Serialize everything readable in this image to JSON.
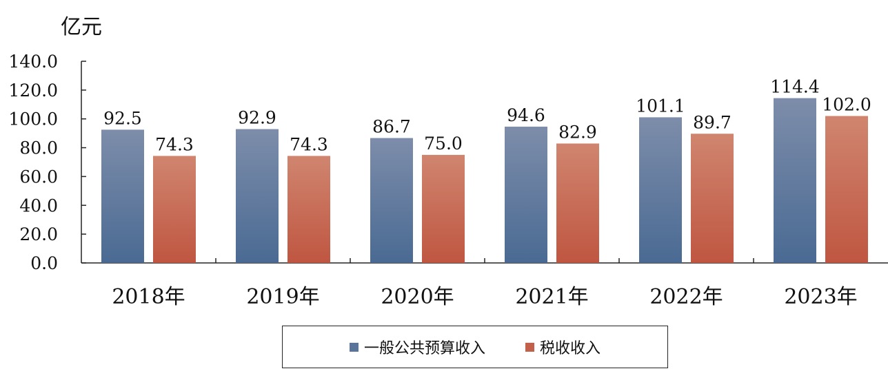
{
  "unit_label": "亿元",
  "colors": {
    "series1": "#5b7499",
    "series2": "#c3604b",
    "axis": "#222222"
  },
  "chart_data": {
    "type": "bar",
    "categories": [
      "2018年",
      "2019年",
      "2020年",
      "2021年",
      "2022年",
      "2023年"
    ],
    "series": [
      {
        "name": "一般公共预算收入",
        "values": [
          92.5,
          92.9,
          86.7,
          94.6,
          101.1,
          114.4
        ]
      },
      {
        "name": "税收收入",
        "values": [
          74.3,
          74.3,
          75.0,
          82.9,
          89.7,
          102.0
        ]
      }
    ],
    "data_labels": [
      [
        "92.5",
        "92.9",
        "86.7",
        "94.6",
        "101.1",
        "114.4"
      ],
      [
        "74.3",
        "74.3",
        "75.0",
        "82.9",
        "89.7",
        "102.0"
      ]
    ],
    "yticks": [
      "0.0",
      "20.0",
      "40.0",
      "60.0",
      "80.0",
      "100.0",
      "120.0",
      "140.0"
    ],
    "ylim": [
      0,
      140
    ],
    "ylabel": "亿元",
    "grid": false,
    "legend_position": "bottom"
  }
}
